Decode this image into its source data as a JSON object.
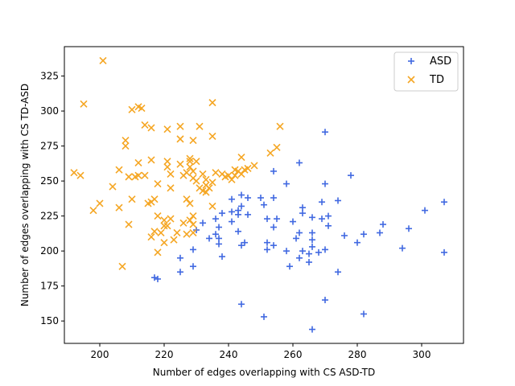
{
  "chart_data": {
    "type": "scatter",
    "xlabel": "Number of edges overlapping with CS ASD-TD",
    "ylabel": "Number of edges overlapping with CS TD-ASD",
    "xlim": [
      189,
      313
    ],
    "ylim": [
      134,
      346
    ],
    "xticks": [
      200,
      220,
      240,
      260,
      280,
      300
    ],
    "yticks": [
      150,
      175,
      200,
      225,
      250,
      275,
      300,
      325
    ],
    "grid": false,
    "legend_position": "top-right",
    "series": [
      {
        "name": "ASD",
        "marker": "plus",
        "color": "#4169e1",
        "points": [
          [
            217,
            181
          ],
          [
            218,
            180
          ],
          [
            225,
            185
          ],
          [
            225,
            195
          ],
          [
            229,
            189
          ],
          [
            229,
            201
          ],
          [
            230,
            215
          ],
          [
            232,
            220
          ],
          [
            234,
            209
          ],
          [
            236,
            223
          ],
          [
            236,
            212
          ],
          [
            237,
            205
          ],
          [
            237,
            209
          ],
          [
            237,
            217
          ],
          [
            238,
            227
          ],
          [
            238,
            196
          ],
          [
            241,
            228
          ],
          [
            241,
            221
          ],
          [
            241,
            237
          ],
          [
            243,
            214
          ],
          [
            243,
            226
          ],
          [
            243,
            229
          ],
          [
            244,
            232
          ],
          [
            244,
            240
          ],
          [
            244,
            162
          ],
          [
            245,
            206
          ],
          [
            244,
            204
          ],
          [
            246,
            226
          ],
          [
            246,
            238
          ],
          [
            250,
            238
          ],
          [
            251,
            233
          ],
          [
            251,
            153
          ],
          [
            252,
            201
          ],
          [
            252,
            206
          ],
          [
            252,
            223
          ],
          [
            254,
            238
          ],
          [
            254,
            204
          ],
          [
            254,
            217
          ],
          [
            254,
            257
          ],
          [
            255,
            223
          ],
          [
            258,
            248
          ],
          [
            258,
            200
          ],
          [
            259,
            189
          ],
          [
            260,
            221
          ],
          [
            261,
            209
          ],
          [
            262,
            213
          ],
          [
            262,
            195
          ],
          [
            262,
            263
          ],
          [
            263,
            227
          ],
          [
            263,
            231
          ],
          [
            263,
            200
          ],
          [
            265,
            192
          ],
          [
            265,
            198
          ],
          [
            266,
            224
          ],
          [
            266,
            144
          ],
          [
            266,
            213
          ],
          [
            266,
            208
          ],
          [
            266,
            203
          ],
          [
            268,
            199
          ],
          [
            269,
            223
          ],
          [
            269,
            235
          ],
          [
            270,
            285
          ],
          [
            270,
            248
          ],
          [
            270,
            201
          ],
          [
            270,
            165
          ],
          [
            271,
            225
          ],
          [
            271,
            218
          ],
          [
            274,
            236
          ],
          [
            274,
            185
          ],
          [
            276,
            211
          ],
          [
            278,
            254
          ],
          [
            280,
            206
          ],
          [
            282,
            212
          ],
          [
            282,
            155
          ],
          [
            287,
            213
          ],
          [
            288,
            219
          ],
          [
            294,
            202
          ],
          [
            296,
            216
          ],
          [
            301,
            229
          ],
          [
            307,
            235
          ],
          [
            307,
            199
          ]
        ]
      },
      {
        "name": "TD",
        "marker": "x",
        "color": "#f5a623",
        "points": [
          [
            192,
            256
          ],
          [
            194,
            254
          ],
          [
            195,
            305
          ],
          [
            198,
            229
          ],
          [
            200,
            234
          ],
          [
            201,
            336
          ],
          [
            204,
            246
          ],
          [
            206,
            258
          ],
          [
            206,
            231
          ],
          [
            207,
            189
          ],
          [
            208,
            279
          ],
          [
            208,
            275
          ],
          [
            209,
            219
          ],
          [
            209,
            253
          ],
          [
            210,
            301
          ],
          [
            210,
            237
          ],
          [
            211,
            253
          ],
          [
            212,
            303
          ],
          [
            212,
            263
          ],
          [
            212,
            254
          ],
          [
            213,
            302
          ],
          [
            214,
            290
          ],
          [
            214,
            254
          ],
          [
            215,
            234
          ],
          [
            216,
            235
          ],
          [
            216,
            210
          ],
          [
            216,
            288
          ],
          [
            216,
            265
          ],
          [
            217,
            214
          ],
          [
            217,
            237
          ],
          [
            218,
            248
          ],
          [
            218,
            199
          ],
          [
            218,
            225
          ],
          [
            219,
            213
          ],
          [
            220,
            206
          ],
          [
            220,
            222
          ],
          [
            220,
            218
          ],
          [
            221,
            218
          ],
          [
            221,
            260
          ],
          [
            221,
            287
          ],
          [
            221,
            264
          ],
          [
            222,
            255
          ],
          [
            222,
            223
          ],
          [
            222,
            245
          ],
          [
            223,
            208
          ],
          [
            224,
            213
          ],
          [
            225,
            289
          ],
          [
            225,
            280
          ],
          [
            225,
            262
          ],
          [
            226,
            254
          ],
          [
            226,
            220
          ],
          [
            227,
            212
          ],
          [
            227,
            256
          ],
          [
            227,
            237
          ],
          [
            228,
            234
          ],
          [
            228,
            222
          ],
          [
            228,
            260
          ],
          [
            228,
            264
          ],
          [
            228,
            266
          ],
          [
            229,
            279
          ],
          [
            229,
            257
          ],
          [
            229,
            252
          ],
          [
            229,
            219
          ],
          [
            229,
            225
          ],
          [
            229,
            213
          ],
          [
            230,
            264
          ],
          [
            230,
            250
          ],
          [
            231,
            289
          ],
          [
            231,
            245
          ],
          [
            232,
            255
          ],
          [
            232,
            243
          ],
          [
            233,
            242
          ],
          [
            233,
            251
          ],
          [
            233,
            247
          ],
          [
            234,
            245
          ],
          [
            235,
            249
          ],
          [
            235,
            282
          ],
          [
            235,
            306
          ],
          [
            235,
            232
          ],
          [
            236,
            256
          ],
          [
            238,
            255
          ],
          [
            239,
            253
          ],
          [
            240,
            254
          ],
          [
            241,
            251
          ],
          [
            242,
            258
          ],
          [
            242,
            254
          ],
          [
            243,
            257
          ],
          [
            244,
            267
          ],
          [
            244,
            255
          ],
          [
            245,
            258
          ],
          [
            246,
            259
          ],
          [
            248,
            261
          ],
          [
            253,
            270
          ],
          [
            255,
            274
          ],
          [
            256,
            289
          ]
        ]
      }
    ]
  }
}
